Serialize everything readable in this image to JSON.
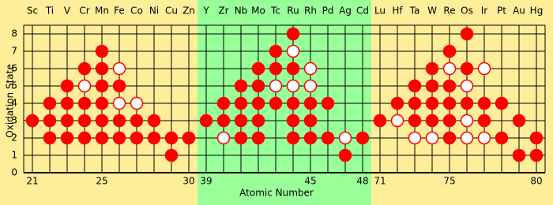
{
  "chart_data": {
    "type": "dot-grid",
    "xlabel": "Atomic Number",
    "ylabel": "Oxidation State",
    "sections": [
      {
        "first_atomic_number": 21,
        "background": "#ffee99",
        "categories": [
          "Sc",
          "Ti",
          "V",
          "Cr",
          "Mn",
          "Fe",
          "Co",
          "Ni",
          "Cu",
          "Zn"
        ]
      },
      {
        "first_atomic_number": 39,
        "background": "#99ff99",
        "categories": [
          "Y",
          "Zr",
          "Nb",
          "Mo",
          "Tc",
          "Ru",
          "Rh",
          "Pd",
          "Ag",
          "Cd"
        ]
      },
      {
        "first_atomic_number": 71,
        "background": "#ffee99",
        "categories": [
          "Lu",
          "Hf",
          "Ta",
          "W",
          "Re",
          "Os",
          "Ir",
          "Pt",
          "Au",
          "Hg"
        ]
      }
    ],
    "series": [
      {
        "color": "#ff0000",
        "fill": "#ff0000",
        "values": [
          [
            [
              3
            ],
            [
              4,
              3,
              2
            ],
            [
              5,
              4,
              3,
              2
            ],
            [
              6,
              4,
              3,
              2
            ],
            [
              7,
              6,
              5,
              4,
              3,
              2
            ],
            [
              5,
              3,
              2
            ],
            [
              3,
              2
            ],
            [
              3,
              2
            ],
            [
              2,
              1
            ],
            [
              2
            ]
          ],
          [
            [
              3
            ],
            [
              4,
              3
            ],
            [
              5,
              4,
              3,
              2
            ],
            [
              6,
              5,
              4,
              3,
              2
            ],
            [
              7,
              6,
              4
            ],
            [
              8,
              6,
              4,
              3,
              2
            ],
            [
              4,
              3,
              2
            ],
            [
              4,
              2
            ],
            [
              1
            ],
            [
              2
            ]
          ],
          [
            [
              3
            ],
            [
              4
            ],
            [
              5,
              4,
              3
            ],
            [
              6,
              5,
              4,
              3
            ],
            [
              7,
              5,
              4,
              3,
              2
            ],
            [
              8,
              6,
              4
            ],
            [
              4,
              3
            ],
            [
              4,
              2
            ],
            [
              3,
              1
            ],
            [
              2,
              1
            ]
          ]
        ]
      },
      {
        "color": "#ff0000",
        "fill": "#ffffff",
        "values": [
          [
            [],
            [],
            [],
            [
              5
            ],
            [],
            [
              6,
              4
            ],
            [
              4
            ],
            [],
            [],
            []
          ],
          [
            [],
            [
              2
            ],
            [],
            [],
            [
              5
            ],
            [
              7,
              5
            ],
            [
              6,
              5
            ],
            [],
            [
              2
            ],
            []
          ],
          [
            [],
            [
              3
            ],
            [
              2
            ],
            [
              2
            ],
            [
              6
            ],
            [
              5,
              3,
              2
            ],
            [
              6,
              2
            ],
            [],
            [],
            []
          ]
        ]
      }
    ],
    "ylim": [
      0,
      8.5
    ],
    "yticks": [
      0,
      1,
      2,
      3,
      4,
      5,
      6,
      7,
      8
    ],
    "xticks": [
      21,
      25,
      30,
      39,
      45,
      48,
      71,
      75,
      80
    ],
    "grid": true
  }
}
